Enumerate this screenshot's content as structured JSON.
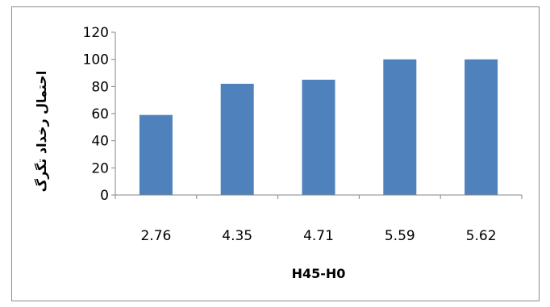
{
  "chart_data": {
    "type": "bar",
    "categories": [
      "2.76",
      "4.35",
      "4.71",
      "5.59",
      "5.62"
    ],
    "values": [
      59,
      82,
      85,
      100,
      100
    ],
    "xlabel": "H45-H0",
    "ylabel": "احتمال رخداد تگرگ",
    "ylim": [
      0,
      120
    ],
    "yticks": [
      0,
      20,
      40,
      60,
      80,
      100,
      120
    ],
    "grid": false,
    "legend": "none",
    "bar_color": "#4f81bd",
    "axis_color": "#868686"
  }
}
